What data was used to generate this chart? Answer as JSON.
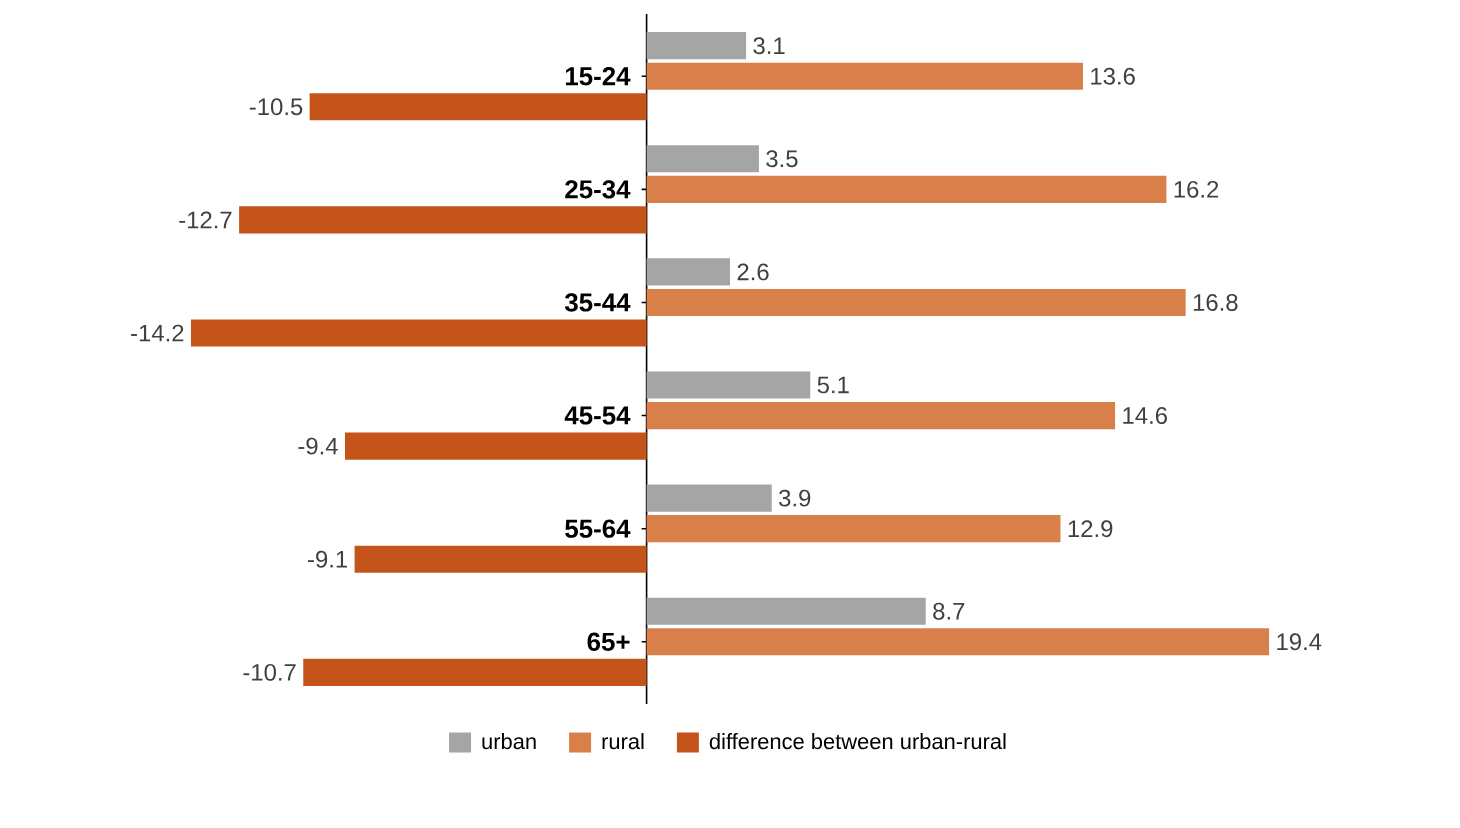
{
  "chart_data": {
    "type": "bar",
    "orientation": "horizontal",
    "categories": [
      "15-24",
      "25-34",
      "35-44",
      "45-54",
      "55-64",
      "65+"
    ],
    "series": [
      {
        "name": "urban",
        "color": "#a5a5a5",
        "values": [
          3.1,
          3.5,
          2.6,
          5.1,
          3.9,
          8.7
        ]
      },
      {
        "name": "rural",
        "color": "#d9804a",
        "values": [
          13.6,
          16.2,
          16.8,
          14.6,
          12.9,
          19.4
        ]
      },
      {
        "name": "difference between urban-rural",
        "color": "#c4541a",
        "values": [
          -10.5,
          -12.7,
          -14.2,
          -9.4,
          -9.1,
          -10.7
        ]
      }
    ],
    "data_labels": true,
    "legend": "bottom"
  }
}
